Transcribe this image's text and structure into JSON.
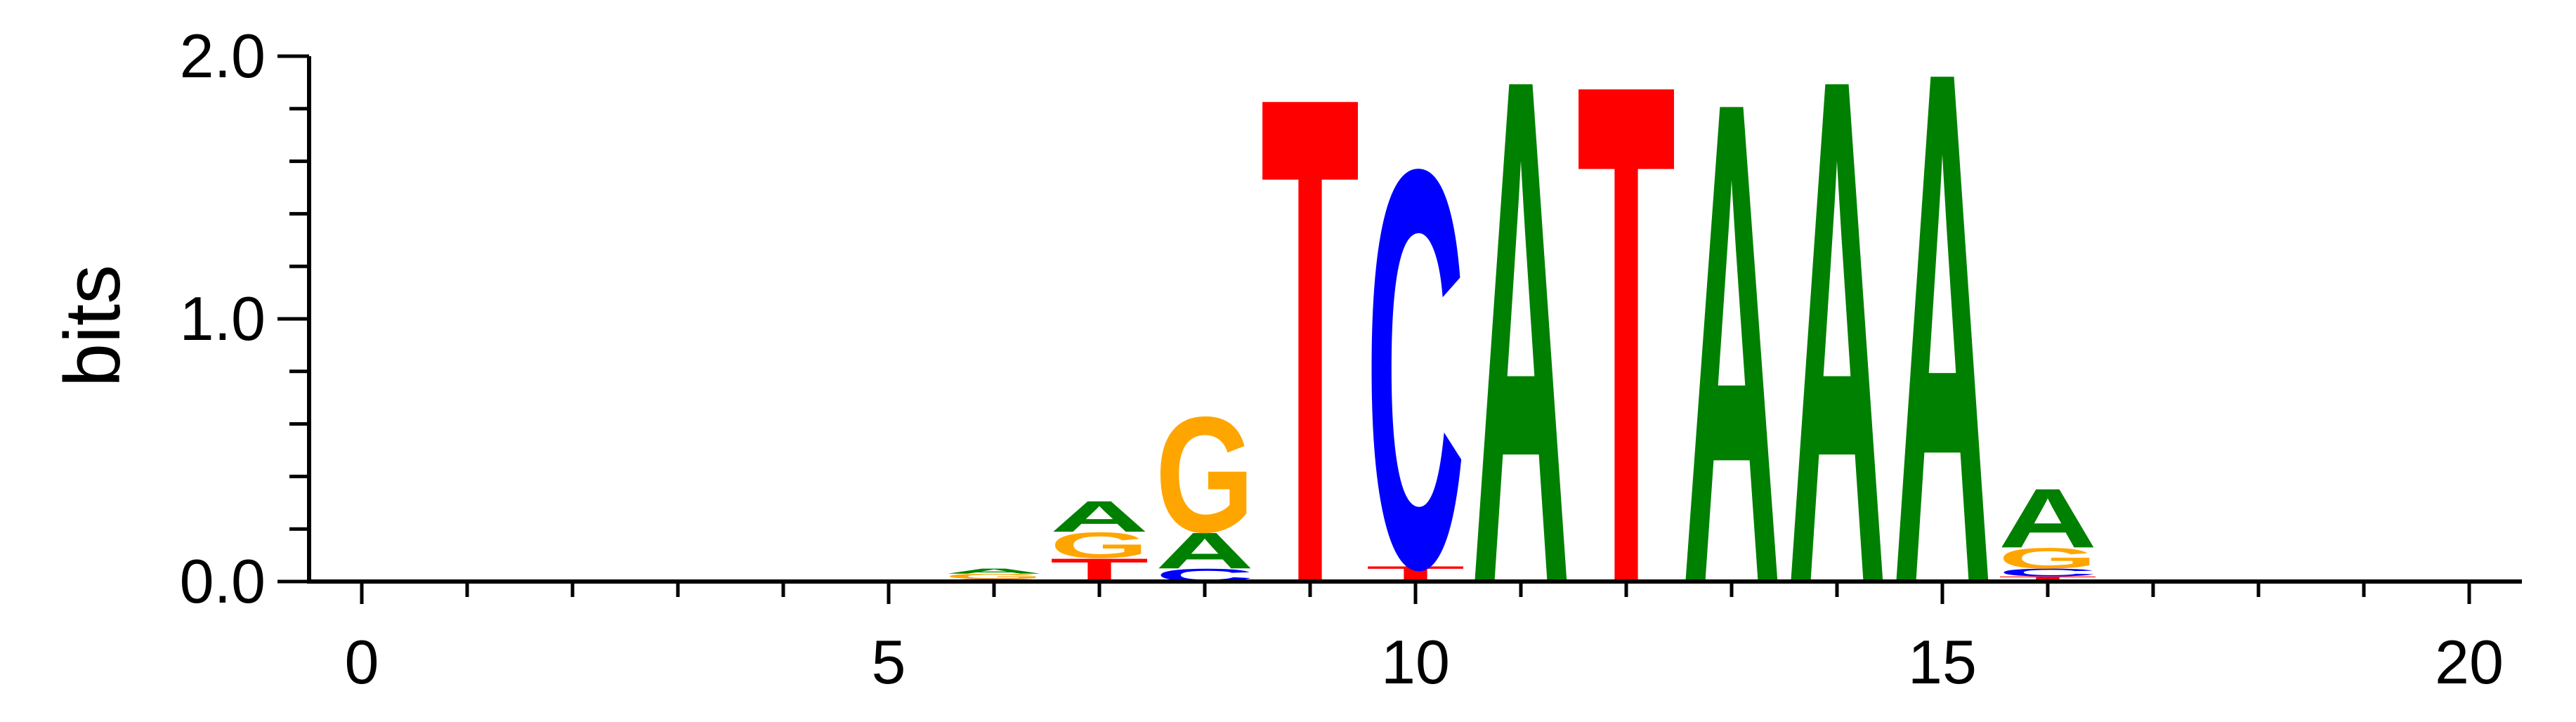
{
  "chart_data": {
    "type": "sequence-logo",
    "ylabel": "bits",
    "ylim": [
      0,
      2
    ],
    "xlim": [
      -0.5,
      20.5
    ],
    "y_ticks": [
      {
        "value": 0,
        "label": "0.0"
      },
      {
        "value": 1,
        "label": "1.0"
      },
      {
        "value": 2,
        "label": "2.0"
      }
    ],
    "x_ticks": [
      {
        "value": 0,
        "label": "0"
      },
      {
        "value": 5,
        "label": "5"
      },
      {
        "value": 10,
        "label": "10"
      },
      {
        "value": 15,
        "label": "15"
      },
      {
        "value": 20,
        "label": "20"
      }
    ],
    "colors": {
      "A": "#008000",
      "C": "#0000ff",
      "G": "#ffa500",
      "T": "#ff0000"
    },
    "positions": [
      {
        "pos": 6,
        "letters": [
          {
            "base": "C",
            "bits": 0.01
          },
          {
            "base": "G",
            "bits": 0.02
          },
          {
            "base": "A",
            "bits": 0.02
          }
        ]
      },
      {
        "pos": 7,
        "letters": [
          {
            "base": "T",
            "bits": 0.09
          },
          {
            "base": "G",
            "bits": 0.1
          },
          {
            "base": "A",
            "bits": 0.12
          }
        ]
      },
      {
        "pos": 8,
        "letters": [
          {
            "base": "C",
            "bits": 0.05
          },
          {
            "base": "A",
            "bits": 0.14
          },
          {
            "base": "G",
            "bits": 0.45
          }
        ]
      },
      {
        "pos": 9,
        "letters": [
          {
            "base": "T",
            "bits": 1.9
          }
        ]
      },
      {
        "pos": 10,
        "letters": [
          {
            "base": "T",
            "bits": 0.06
          },
          {
            "base": "C",
            "bits": 1.55
          }
        ]
      },
      {
        "pos": 11,
        "letters": [
          {
            "base": "A",
            "bits": 1.97
          }
        ]
      },
      {
        "pos": 12,
        "letters": [
          {
            "base": "T",
            "bits": 1.95
          }
        ]
      },
      {
        "pos": 13,
        "letters": [
          {
            "base": "A",
            "bits": 1.88
          }
        ]
      },
      {
        "pos": 14,
        "letters": [
          {
            "base": "A",
            "bits": 1.97
          }
        ]
      },
      {
        "pos": 15,
        "letters": [
          {
            "base": "A",
            "bits": 2.0
          }
        ]
      },
      {
        "pos": 16,
        "letters": [
          {
            "base": "T",
            "bits": 0.02
          },
          {
            "base": "C",
            "bits": 0.03
          },
          {
            "base": "G",
            "bits": 0.08
          },
          {
            "base": "A",
            "bits": 0.23
          }
        ]
      }
    ]
  }
}
